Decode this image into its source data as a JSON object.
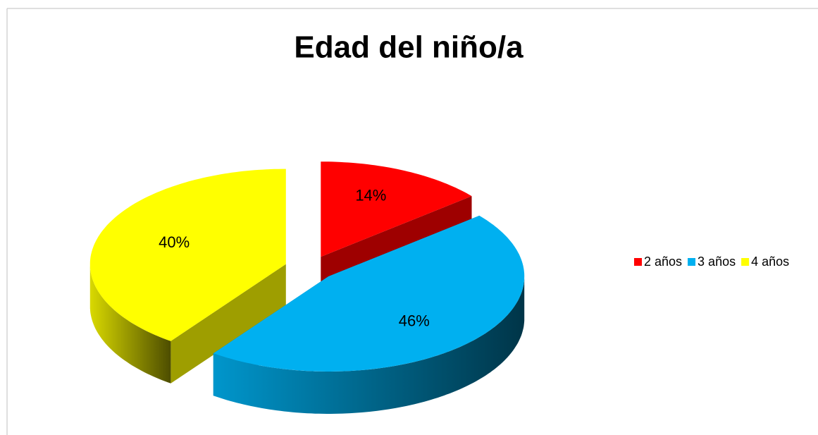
{
  "chart_data": {
    "type": "pie3d",
    "title": "Edad del niño/a",
    "categories": [
      "2 años",
      "3 años",
      "4 años"
    ],
    "values": [
      14,
      46,
      40
    ],
    "value_labels": [
      "14%",
      "46%",
      "40%"
    ],
    "colors": [
      "#ff0000",
      "#00b0f0",
      "#ffff00"
    ],
    "legend": "right"
  }
}
